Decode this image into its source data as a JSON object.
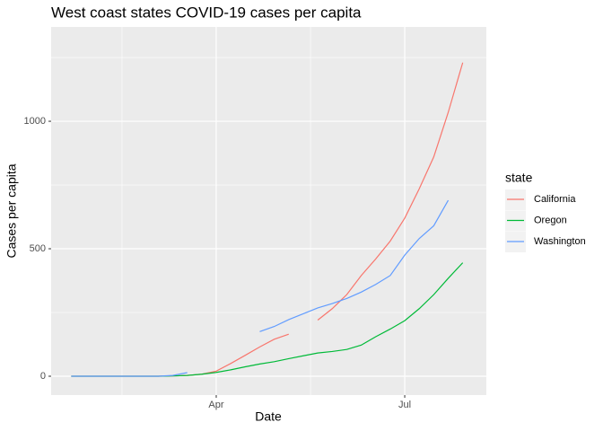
{
  "chart_data": {
    "type": "line",
    "title": "West coast states COVID-19 cases per capita",
    "x_label": "Date",
    "y_label": "Cases per capita",
    "legend_title": "state",
    "legend": "right",
    "grid": true,
    "x": [
      22,
      29,
      36,
      43,
      50,
      57,
      64,
      71,
      78,
      85,
      92,
      99,
      106,
      113,
      120,
      127,
      134,
      141,
      148,
      155,
      162,
      169,
      176,
      183,
      190,
      197,
      204,
      211
    ],
    "xlim": [
      12.3,
      222.4
    ],
    "xticks": [
      {
        "value": 92,
        "label": "Apr"
      },
      {
        "value": 183,
        "label": "Jul"
      }
    ],
    "ylim": [
      -74,
      1370
    ],
    "yticks": [
      0,
      500,
      1000
    ],
    "series": [
      {
        "name": "California",
        "color": "#f8766d",
        "values": [
          0,
          0,
          0,
          0,
          0,
          0,
          0,
          1,
          3,
          8,
          20,
          50,
          82,
          115,
          145,
          165,
          null,
          220,
          265,
          320,
          395,
          460,
          530,
          620,
          735,
          860,
          1035,
          1230
        ]
      },
      {
        "name": "Oregon",
        "color": "#00ba38",
        "values": [
          0,
          0,
          0,
          0,
          0,
          0,
          0,
          1,
          3,
          8,
          15,
          25,
          37,
          48,
          57,
          69,
          80,
          91,
          97,
          105,
          122,
          155,
          185,
          218,
          265,
          320,
          384,
          445
        ]
      },
      {
        "name": "Washington",
        "color": "#619cff",
        "values": [
          0,
          0,
          0,
          0,
          0,
          0,
          0,
          3,
          14,
          null,
          null,
          null,
          null,
          175,
          195,
          222,
          245,
          268,
          285,
          305,
          330,
          360,
          395,
          475,
          540,
          590,
          690,
          null
        ]
      }
    ]
  }
}
